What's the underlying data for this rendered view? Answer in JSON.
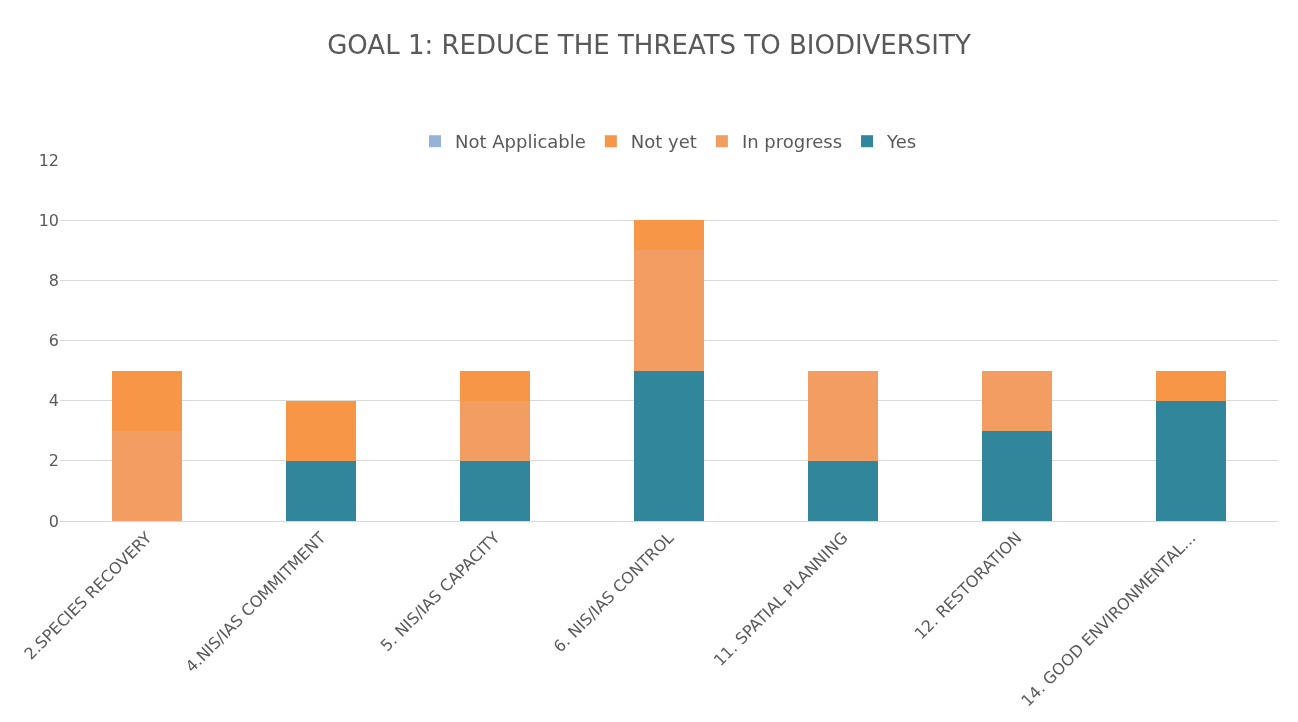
{
  "chart_data": {
    "type": "bar",
    "title": "GOAL 1: REDUCE THE THREATS TO BIODIVERSITY",
    "categories": [
      "2.SPECIES RECOVERY",
      "4.NIS/IAS COMMITMENT",
      "5. NIS/IAS CAPACITY",
      "6. NIS/IAS CONTROL",
      "11. SPATIAL PLANNING",
      "12. RESTORATION",
      "14. GOOD ENVIRONMENTAL..."
    ],
    "series": [
      {
        "name": "Yes",
        "color": "#31869b",
        "values": [
          0,
          2,
          2,
          5,
          2,
          3,
          4
        ]
      },
      {
        "name": "In progress",
        "color": "#f29d62",
        "values": [
          3,
          0,
          2,
          4,
          3,
          2,
          0
        ]
      },
      {
        "name": "Not yet",
        "color": "#f79646",
        "values": [
          2,
          2,
          1,
          1,
          0,
          0,
          1
        ]
      },
      {
        "name": "Not Applicable",
        "color": "#95b3d7",
        "values": [
          0,
          0,
          0,
          0,
          0,
          0,
          0
        ]
      }
    ],
    "stacked": true,
    "ylim": [
      0,
      12
    ],
    "yticks": [
      0,
      2,
      4,
      6,
      8,
      10,
      12
    ],
    "grid": "y",
    "legend": "top"
  }
}
